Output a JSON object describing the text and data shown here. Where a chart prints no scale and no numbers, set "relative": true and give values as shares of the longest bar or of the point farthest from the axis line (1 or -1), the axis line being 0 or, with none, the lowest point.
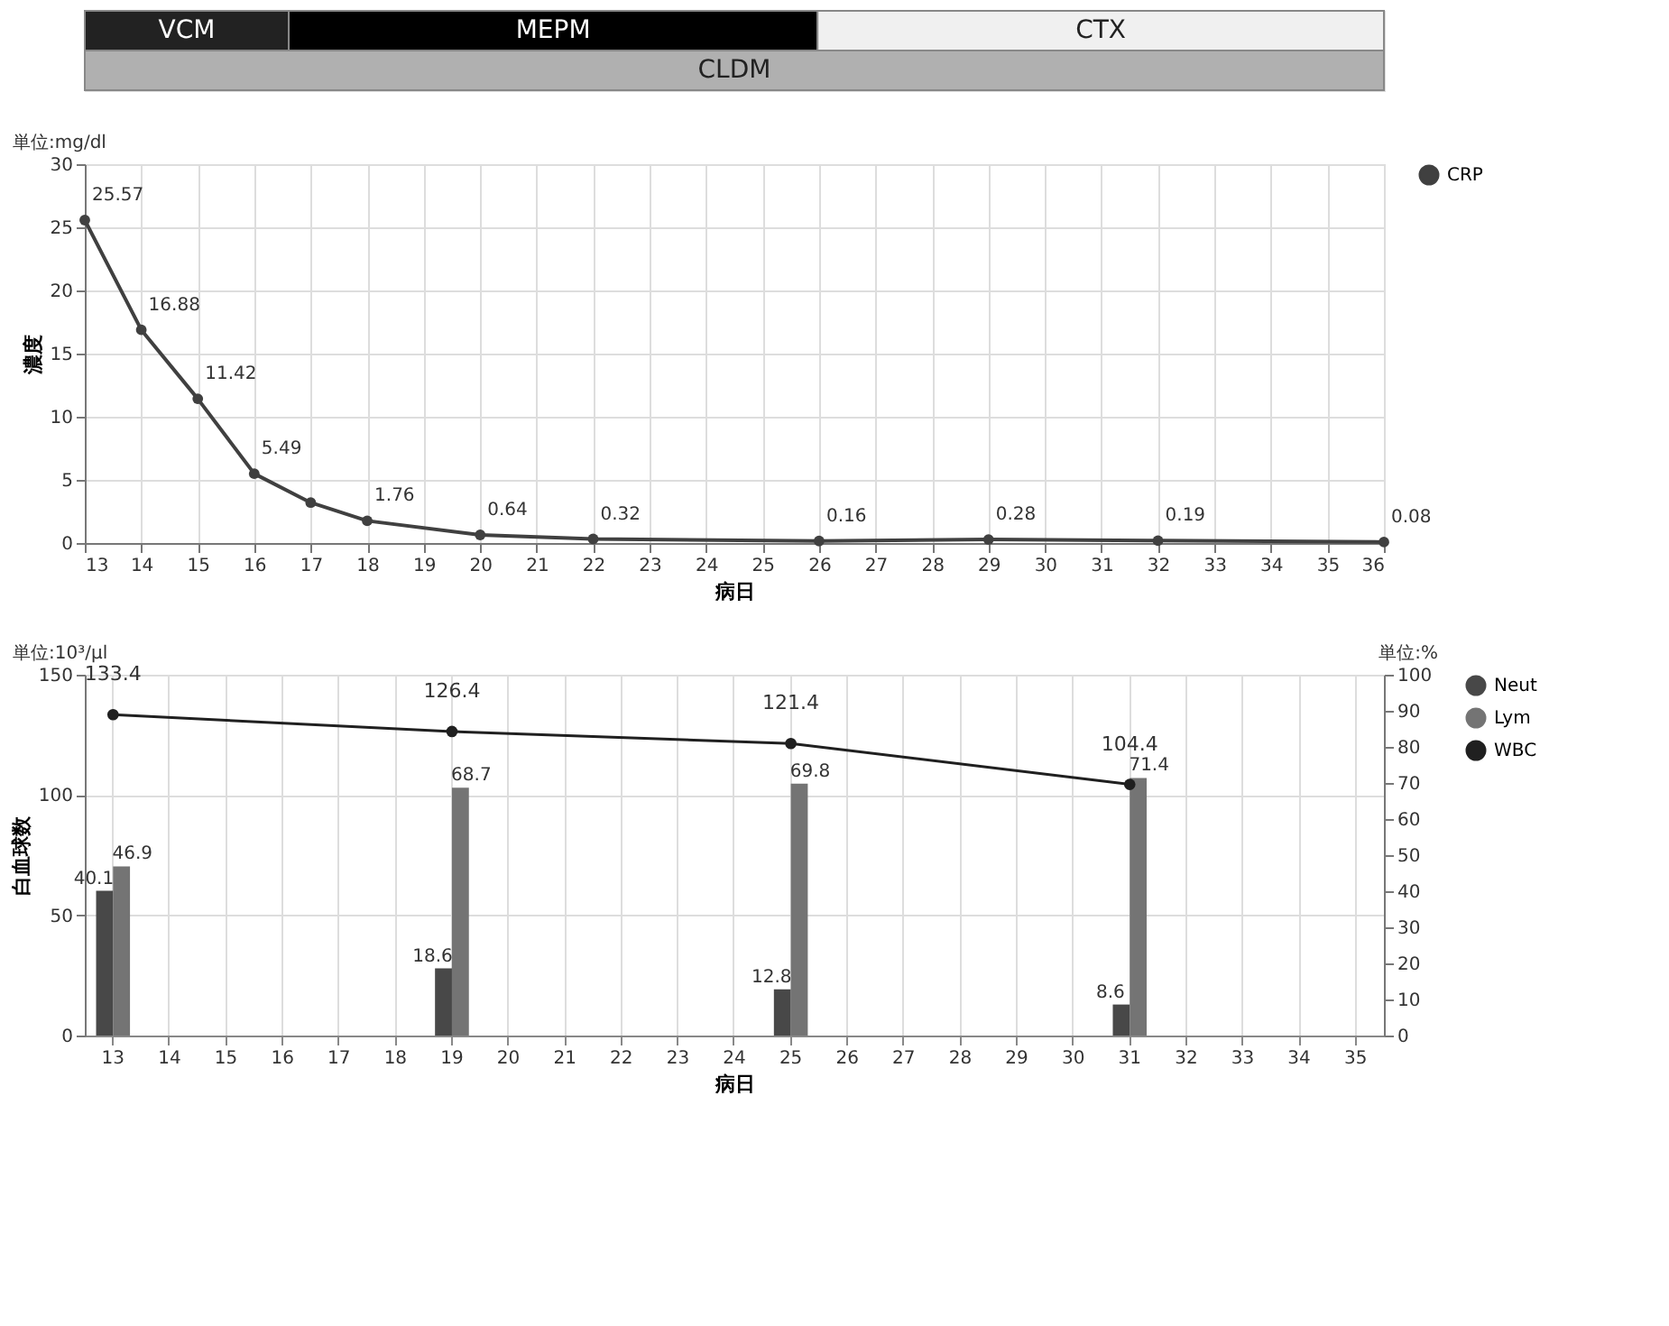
{
  "chart_data": [
    {
      "type": "bar",
      "orientation": "horizontal",
      "stacked": true,
      "relative": true,
      "categories": [
        null,
        null
      ],
      "series": [
        {
          "name": "VCM",
          "color": "#222222",
          "values": [
            0.157,
            null
          ]
        },
        {
          "name": "MEPM",
          "color": "#000000",
          "values": [
            0.407,
            null
          ]
        },
        {
          "name": "CTX",
          "color": "#f0f0f0",
          "values": [
            0.436,
            null
          ]
        },
        {
          "name": "CLDM",
          "color": "#b0b0b0",
          "values": [
            null,
            1
          ]
        }
      ]
    },
    {
      "type": "line",
      "x": [
        13,
        14,
        15,
        16,
        17,
        18,
        20,
        22,
        26,
        29,
        32,
        36
      ],
      "xlabel": "病日",
      "ylabel": "濃度",
      "xlim": [
        13,
        36
      ],
      "xticks": [
        13,
        14,
        15,
        16,
        17,
        18,
        19,
        20,
        21,
        22,
        23,
        24,
        25,
        26,
        27,
        28,
        29,
        30,
        31,
        32,
        33,
        34,
        35,
        36
      ],
      "ylim": [
        0,
        30
      ],
      "yticks": [
        0,
        5,
        10,
        15,
        20,
        25,
        30
      ],
      "grid": true,
      "legend": "right",
      "marker": "circle",
      "annotations": [
        "単位:mg/dl"
      ],
      "series": [
        {
          "name": "CRP",
          "color": "#404040",
          "values": [
            25.57,
            16.88,
            11.42,
            5.49,
            3.2,
            1.76,
            0.64,
            0.32,
            0.16,
            0.28,
            0.19,
            0.08
          ],
          "value_labels": [
            "25.57",
            "16.88",
            "11.42",
            "5.49",
            null,
            "1.76",
            "0.64",
            "0.32",
            "0.16",
            "0.28",
            "0.19",
            "0.08"
          ]
        }
      ]
    },
    {
      "type": "bar",
      "categories": [
        "13",
        "14",
        "15",
        "16",
        "17",
        "18",
        "19",
        "20",
        "21",
        "22",
        "23",
        "24",
        "25",
        "26",
        "27",
        "28",
        "29",
        "30",
        "31",
        "32",
        "33",
        "34",
        "35"
      ],
      "xlabel": "病日",
      "ylabel": "白血球数",
      "ylim": [
        0,
        150
      ],
      "yticks": [
        0,
        50,
        100,
        150
      ],
      "y2lim": [
        0,
        100
      ],
      "y2ticks": [
        0,
        10,
        20,
        30,
        40,
        50,
        60,
        70,
        80,
        90,
        100
      ],
      "grid": true,
      "legend": "right",
      "data_labels": true,
      "marker": "circle",
      "annotations": [
        "単位:10³/μl",
        "単位:%"
      ],
      "series": [
        {
          "name": "Neut",
          "color": "#484848",
          "axis": "y2",
          "values": [
            40.1,
            null,
            null,
            null,
            null,
            null,
            18.6,
            null,
            null,
            null,
            null,
            null,
            12.8,
            null,
            null,
            null,
            null,
            null,
            8.6,
            null,
            null,
            null,
            null
          ]
        },
        {
          "name": "Lym",
          "color": "#747474",
          "axis": "y2",
          "values": [
            46.9,
            null,
            null,
            null,
            null,
            null,
            68.7,
            null,
            null,
            null,
            null,
            null,
            69.8,
            null,
            null,
            null,
            null,
            null,
            71.4,
            null,
            null,
            null,
            null
          ]
        },
        {
          "name": "WBC",
          "type": "line",
          "color": "#202020",
          "axis": "y",
          "values": [
            133.4,
            null,
            null,
            null,
            null,
            null,
            126.4,
            null,
            null,
            null,
            null,
            null,
            121.4,
            null,
            null,
            null,
            null,
            null,
            104.4,
            null,
            null,
            null,
            null
          ]
        }
      ]
    }
  ]
}
